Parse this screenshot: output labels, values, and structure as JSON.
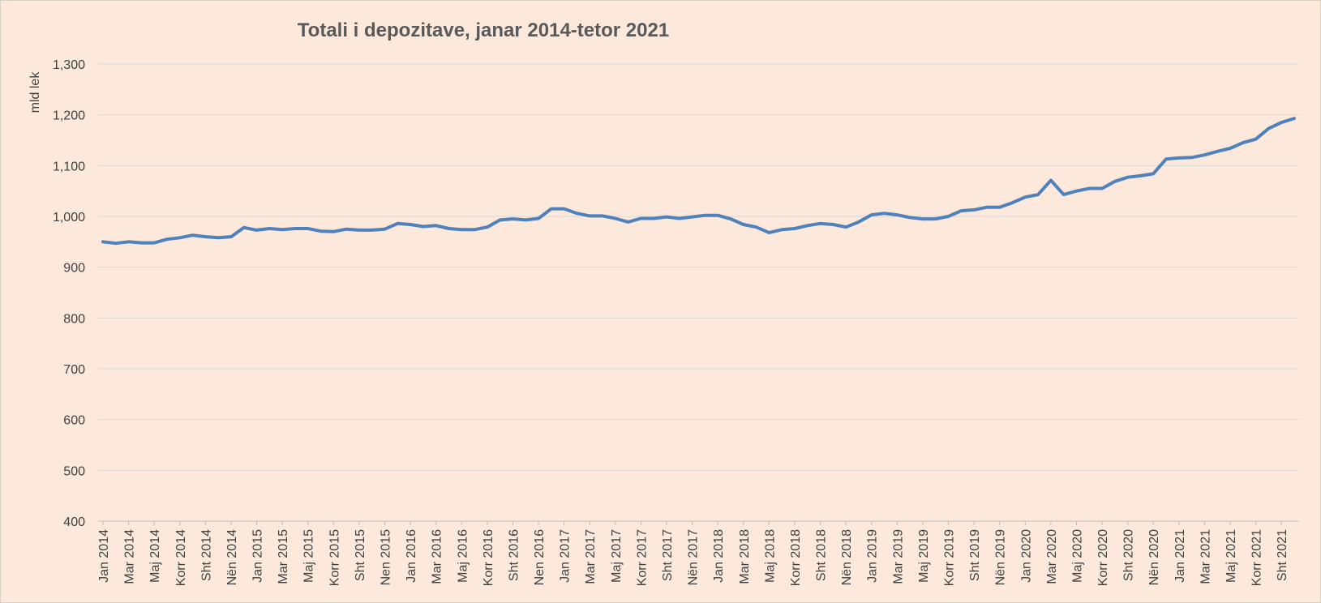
{
  "chart_data": {
    "type": "line",
    "title": "Totali i depozitave, janar 2014-tetor 2021",
    "ylabel": "mld lek",
    "xlabel": "",
    "ylim": [
      400,
      1300
    ],
    "yticks": [
      "1,300",
      "1,200",
      "1,100",
      "1,000",
      "900",
      "800",
      "700",
      "600",
      "500",
      "400"
    ],
    "ytick_values": [
      1300,
      1200,
      1100,
      1000,
      900,
      800,
      700,
      600,
      500,
      400
    ],
    "grid": true,
    "x_labels": [
      "Jan 2014",
      "Mar 2014",
      "Maj 2014",
      "Korr 2014",
      "Sht 2014",
      "Nën 2014",
      "Jan 2015",
      "Mar 2015",
      "Maj 2015",
      "Korr 2015",
      "Sht 2015",
      "Nen 2015",
      "Jan 2016",
      "Mar 2016",
      "Maj 2016",
      "Korr 2016",
      "Sht 2016",
      "Nen 2016",
      "Jan 2017",
      "Mar 2017",
      "Maj 2017",
      "Korr 2017",
      "Sht 2017",
      "Nën 2017",
      "Jan 2018",
      "Mar 2018",
      "Maj 2018",
      "Korr 2018",
      "Sht 2018",
      "Nën 2018",
      "Jan 2019",
      "Mar 2019",
      "Maj 2019",
      "Korr 2019",
      "Sht 2019",
      "Nën 2019",
      "Jan 2020",
      "Mar 2020",
      "Maj 2020",
      "Korr 2020",
      "Sht 2020",
      "Nën 2020",
      "Jan 2021",
      "Mar 2021",
      "Maj 2021",
      "Korr 2021",
      "Sht 2021"
    ],
    "series": [
      {
        "name": "Totali i depozitave",
        "color": "#4f81bd",
        "values": [
          950,
          947,
          950,
          948,
          948,
          955,
          958,
          963,
          960,
          958,
          960,
          978,
          973,
          976,
          974,
          976,
          976,
          971,
          970,
          975,
          973,
          973,
          975,
          986,
          984,
          980,
          982,
          976,
          974,
          974,
          979,
          993,
          995,
          993,
          996,
          1015,
          1015,
          1006,
          1001,
          1001,
          996,
          989,
          996,
          996,
          999,
          996,
          999,
          1002,
          1002,
          995,
          984,
          979,
          968,
          974,
          976,
          982,
          986,
          984,
          979,
          989,
          1003,
          1006,
          1003,
          998,
          995,
          995,
          1000,
          1011,
          1013,
          1018,
          1018,
          1027,
          1038,
          1043,
          1071,
          1043,
          1050,
          1055,
          1055,
          1069,
          1077,
          1080,
          1084,
          1113,
          1115,
          1116,
          1121,
          1128,
          1134,
          1145,
          1152,
          1173,
          1185,
          1193
        ]
      }
    ]
  }
}
